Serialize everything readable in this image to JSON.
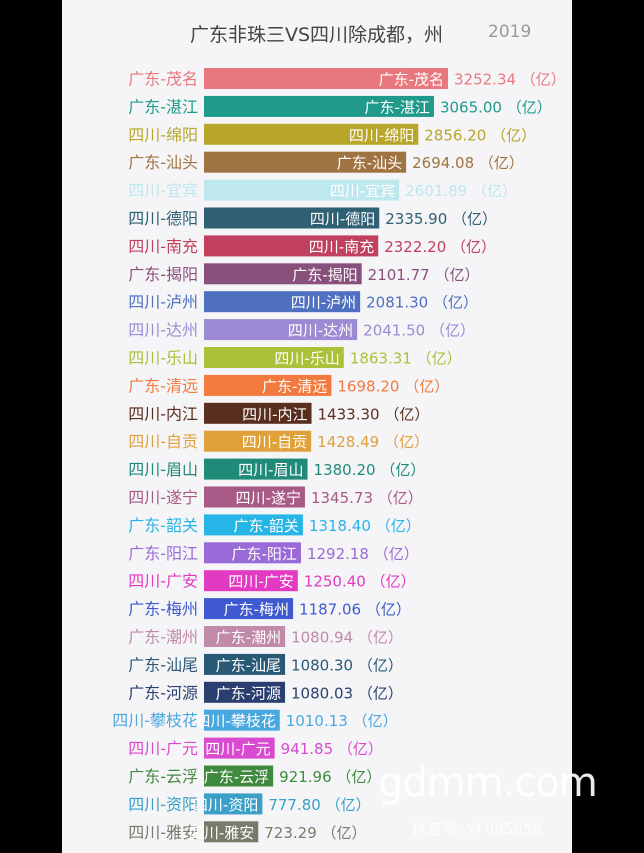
{
  "title": "广东非珠三VS四川除成都，州",
  "year": "2019",
  "watermark": {
    "site": "gdmm.com",
    "tiktok_id": "抖音号: YF005858"
  },
  "chart_data": {
    "type": "bar",
    "orientation": "horizontal",
    "unit_label": "（亿）",
    "categories": [
      "广东-茂名",
      "广东-湛江",
      "四川-绵阳",
      "广东-汕头",
      "四川-宜宾",
      "四川-德阳",
      "四川-南充",
      "广东-揭阳",
      "四川-泸州",
      "四川-达州",
      "四川-乐山",
      "广东-清远",
      "四川-内江",
      "四川-自贡",
      "四川-眉山",
      "四川-遂宁",
      "广东-韶关",
      "广东-阳江",
      "四川-广安",
      "广东-梅州",
      "广东-潮州",
      "广东-汕尾",
      "广东-河源",
      "四川-攀枝花",
      "四川-广元",
      "广东-云浮",
      "四川-资阳",
      "四川-雅安"
    ],
    "value_labels": [
      "3252.34",
      "3065.00",
      "2856.20",
      "2694.08",
      "2601.89",
      "2335.90",
      "2322.20",
      "2101.77",
      "2081.30",
      "2041.50",
      "1863.31",
      "1698.20",
      "1433.30",
      "1428.49",
      "1380.20",
      "1345.73",
      "1318.40",
      "1292.18",
      "1250.40",
      "1187.06",
      "1080.94",
      "1080.30",
      "1080.03",
      "1010.13",
      "941.85",
      "921.96",
      "777.80",
      "723.29"
    ],
    "values": [
      3252.34,
      3065.0,
      2856.2,
      2694.08,
      2601.89,
      2335.9,
      2322.2,
      2101.77,
      2081.3,
      2041.5,
      1863.31,
      1698.2,
      1433.3,
      1428.49,
      1380.2,
      1345.73,
      1318.4,
      1292.18,
      1250.4,
      1187.06,
      1080.94,
      1080.3,
      1080.03,
      1010.13,
      941.85,
      921.96,
      777.8,
      723.29
    ],
    "colors": [
      "#e9787e",
      "#1f9a8a",
      "#b8a62a",
      "#a07442",
      "#bfe7ee",
      "#2f5f73",
      "#c0405e",
      "#8a507c",
      "#4f6fc0",
      "#9c8ad4",
      "#a9c23a",
      "#f37a3e",
      "#5a2e1e",
      "#e0a03a",
      "#1f8a78",
      "#a85a86",
      "#27b4e6",
      "#9a6ad8",
      "#e23ac0",
      "#3f5ad0",
      "#c08aa8",
      "#285a78",
      "#2a3f6f",
      "#4aa8e0",
      "#d84ad0",
      "#3f8a3f",
      "#3aa0c8",
      "#7a7a6a"
    ],
    "bar_text_light": [
      true,
      true,
      true,
      true,
      true,
      true,
      true,
      true,
      true,
      true,
      true,
      true,
      true,
      true,
      true,
      true,
      true,
      true,
      true,
      true,
      true,
      true,
      true,
      true,
      true,
      true,
      true,
      true
    ],
    "xlim": [
      0,
      3252.34
    ]
  }
}
